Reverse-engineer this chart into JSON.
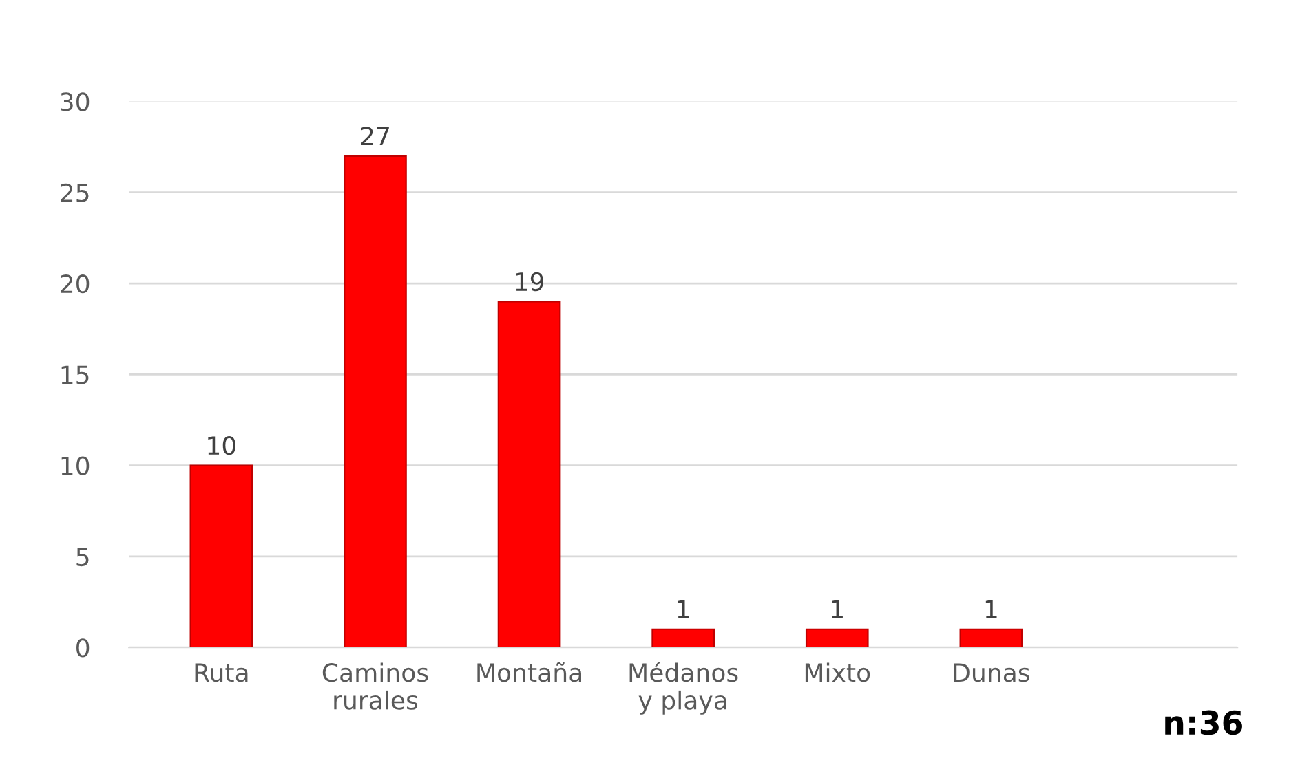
{
  "chart_data": {
    "type": "bar",
    "categories": [
      "Ruta",
      "Caminos\nrurales",
      "Montaña",
      "Médanos\ny playa",
      "Mixto",
      "Dunas",
      null
    ],
    "values": [
      10,
      27,
      19,
      1,
      1,
      1,
      null
    ],
    "color": "#ff0000",
    "ylim": [
      0,
      30
    ],
    "yticks": [
      0,
      5,
      10,
      15,
      20,
      25,
      30
    ],
    "grid": "y",
    "data_labels": true,
    "annotations": [
      "n:36"
    ]
  }
}
